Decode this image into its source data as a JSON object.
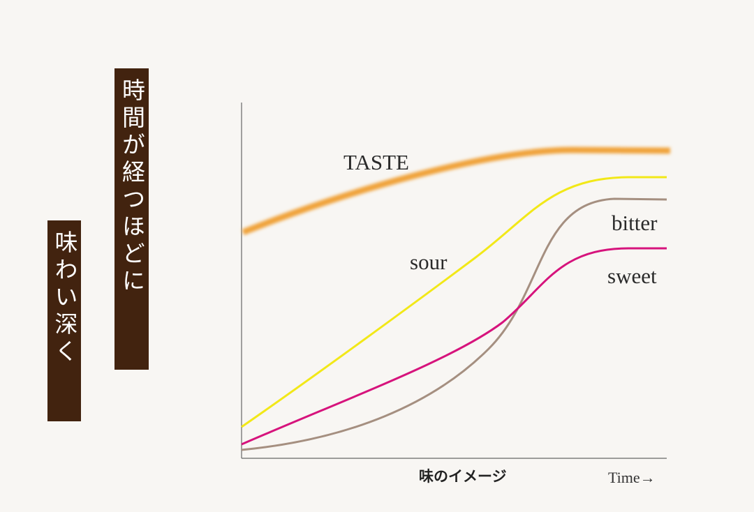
{
  "banners": [
    "時間が経つほどに",
    "味わい深く"
  ],
  "curves": {
    "taste": "TASTE",
    "sour": "sour",
    "bitter": "bitter",
    "sweet": "sweet"
  },
  "caption": "味のイメージ",
  "x_label": "Time→"
}
